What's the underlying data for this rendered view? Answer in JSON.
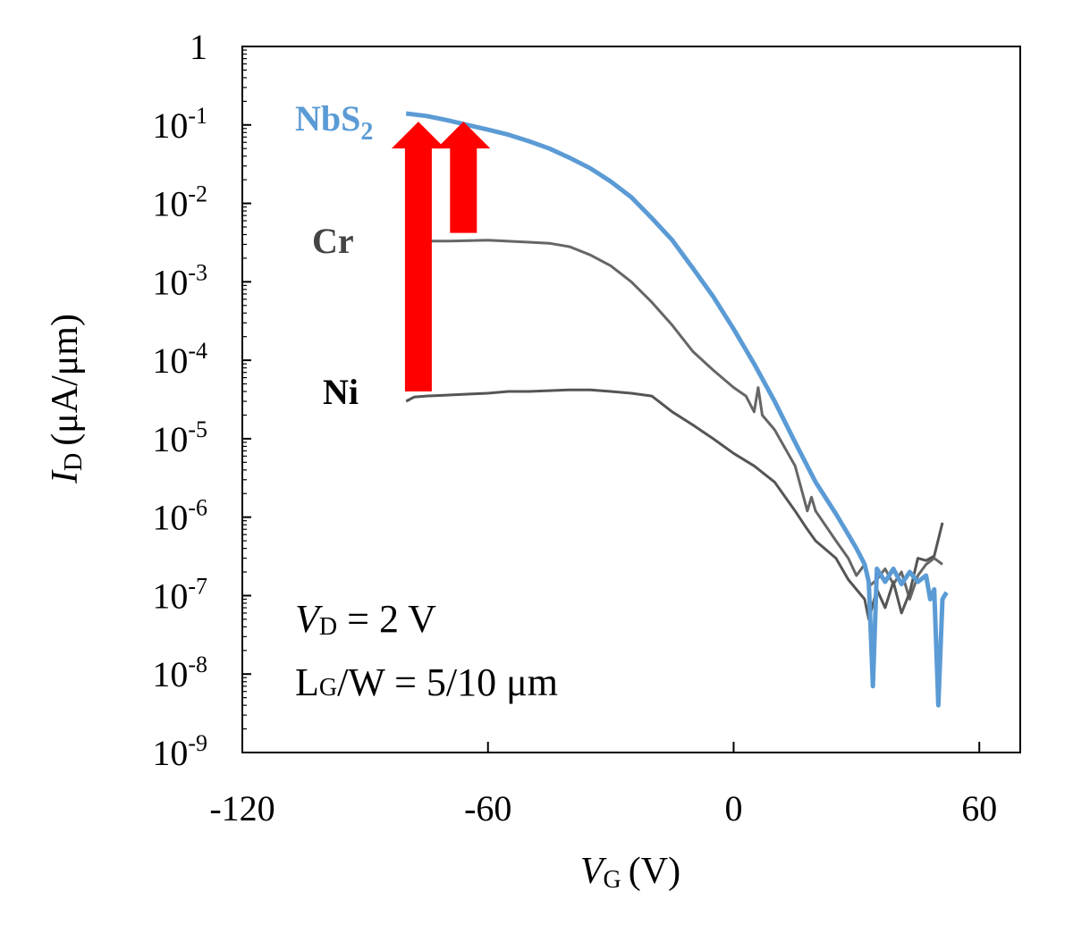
{
  "chart_data": {
    "type": "line",
    "xlabel": {
      "symbol": "V",
      "sub": "G",
      "unit": "(V)"
    },
    "ylabel": {
      "symbol": "I",
      "sub": "D",
      "unit": "(μA/μm)"
    },
    "xlim": [
      -120,
      70
    ],
    "ylim_log10": [
      -9,
      0
    ],
    "y_scale": "log",
    "x_ticks": [
      -120,
      -60,
      0,
      60
    ],
    "x_tick_labels": [
      "-120",
      "-60",
      "0",
      "60"
    ],
    "y_tick_labels": [
      {
        "base": "1",
        "exp": ""
      },
      {
        "base": "10",
        "exp": "-1"
      },
      {
        "base": "10",
        "exp": "-2"
      },
      {
        "base": "10",
        "exp": "-3"
      },
      {
        "base": "10",
        "exp": "-4"
      },
      {
        "base": "10",
        "exp": "-5"
      },
      {
        "base": "10",
        "exp": "-6"
      },
      {
        "base": "10",
        "exp": "-7"
      },
      {
        "base": "10",
        "exp": "-8"
      },
      {
        "base": "10",
        "exp": "-9"
      }
    ],
    "grid": false,
    "series": [
      {
        "name": "NbS2",
        "label_main": "NbS",
        "label_sub": "2",
        "color": "#5b9bd5",
        "points": [
          [
            -80,
            0.14
          ],
          [
            -75,
            0.13
          ],
          [
            -70,
            0.115
          ],
          [
            -65,
            0.1
          ],
          [
            -60,
            0.087
          ],
          [
            -55,
            0.075
          ],
          [
            -50,
            0.062
          ],
          [
            -45,
            0.05
          ],
          [
            -40,
            0.038
          ],
          [
            -35,
            0.028
          ],
          [
            -30,
            0.019
          ],
          [
            -25,
            0.012
          ],
          [
            -20,
            0.0065
          ],
          [
            -15,
            0.0034
          ],
          [
            -10,
            0.0015
          ],
          [
            -5,
            0.00065
          ],
          [
            0,
            0.00025
          ],
          [
            5,
            9e-05
          ],
          [
            10,
            3e-05
          ],
          [
            15,
            9e-06
          ],
          [
            20,
            2.8e-06
          ],
          [
            25,
            1.1e-06
          ],
          [
            28,
            6e-07
          ],
          [
            30,
            4e-07
          ],
          [
            32,
            2.5e-07
          ],
          [
            33,
            1.5e-07
          ],
          [
            34,
            7e-09
          ],
          [
            35,
            2.2e-07
          ],
          [
            37,
            1.5e-07
          ],
          [
            39,
            2.2e-07
          ],
          [
            41,
            1.4e-07
          ],
          [
            43,
            2e-07
          ],
          [
            45,
            1.5e-07
          ],
          [
            47,
            1.8e-07
          ],
          [
            48,
            9e-08
          ],
          [
            49,
            1.2e-07
          ],
          [
            50,
            4e-09
          ],
          [
            51,
            9e-08
          ],
          [
            52,
            1.1e-07
          ]
        ]
      },
      {
        "name": "Cr",
        "color": "#666666",
        "points": [
          [
            -80,
            0.0033
          ],
          [
            -70,
            0.0033
          ],
          [
            -60,
            0.0034
          ],
          [
            -50,
            0.0032
          ],
          [
            -45,
            0.0031
          ],
          [
            -40,
            0.0028
          ],
          [
            -35,
            0.0022
          ],
          [
            -30,
            0.0016
          ],
          [
            -25,
            0.001
          ],
          [
            -20,
            0.00055
          ],
          [
            -15,
            0.00028
          ],
          [
            -10,
            0.00013
          ],
          [
            -5,
            7.5e-05
          ],
          [
            0,
            4.5e-05
          ],
          [
            3,
            3.5e-05
          ],
          [
            5,
            2.2e-05
          ],
          [
            6,
            4.5e-05
          ],
          [
            7,
            2e-05
          ],
          [
            10,
            1.3e-05
          ],
          [
            15,
            4.5e-06
          ],
          [
            18,
            1.2e-06
          ],
          [
            19,
            1.8e-06
          ],
          [
            20,
            1.2e-06
          ],
          [
            25,
            5e-07
          ],
          [
            28,
            3e-07
          ],
          [
            30,
            1.8e-07
          ],
          [
            32,
            2.5e-07
          ],
          [
            33,
            1.3e-07
          ],
          [
            35,
            1.6e-07
          ],
          [
            37,
            2.2e-07
          ],
          [
            39,
            1.4e-07
          ],
          [
            41,
            2e-07
          ],
          [
            43,
            9e-08
          ],
          [
            45,
            1.8e-07
          ],
          [
            47,
            2.5e-07
          ],
          [
            49,
            3e-07
          ],
          [
            51,
            2.5e-07
          ]
        ]
      },
      {
        "name": "Ni",
        "color": "#555555",
        "points": [
          [
            -80,
            3e-05
          ],
          [
            -78,
            3.4e-05
          ],
          [
            -75,
            3.5e-05
          ],
          [
            -70,
            3.6e-05
          ],
          [
            -65,
            3.7e-05
          ],
          [
            -60,
            3.8e-05
          ],
          [
            -55,
            4e-05
          ],
          [
            -50,
            4e-05
          ],
          [
            -45,
            4.1e-05
          ],
          [
            -40,
            4.2e-05
          ],
          [
            -35,
            4.2e-05
          ],
          [
            -30,
            4e-05
          ],
          [
            -25,
            3.8e-05
          ],
          [
            -20,
            3.5e-05
          ],
          [
            -15,
            2.2e-05
          ],
          [
            -10,
            1.5e-05
          ],
          [
            -5,
            1e-05
          ],
          [
            0,
            6.5e-06
          ],
          [
            5,
            4.5e-06
          ],
          [
            10,
            2.8e-06
          ],
          [
            15,
            1.2e-06
          ],
          [
            18,
            7e-07
          ],
          [
            20,
            5e-07
          ],
          [
            25,
            3e-07
          ],
          [
            28,
            1.6e-07
          ],
          [
            30,
            1.2e-07
          ],
          [
            32,
            9e-08
          ],
          [
            33,
            5e-08
          ],
          [
            35,
            1.2e-07
          ],
          [
            37,
            7e-08
          ],
          [
            39,
            1.5e-07
          ],
          [
            41,
            6e-08
          ],
          [
            43,
            1.1e-07
          ],
          [
            45,
            3e-07
          ],
          [
            47,
            2.8e-07
          ],
          [
            49,
            3.2e-07
          ],
          [
            51,
            8.5e-07
          ]
        ]
      }
    ],
    "arrows": [
      {
        "x": -77,
        "from": 4e-05,
        "to": 0.11,
        "color": "#ff0000"
      },
      {
        "x": -66,
        "from": 0.0042,
        "to": 0.11,
        "color": "#ff0000"
      }
    ],
    "annotations": {
      "vd": {
        "symbol": "V",
        "sub": "D",
        "rest": " = 2 V"
      },
      "lgw": {
        "main": "L",
        "sub": "G",
        "rest": "/W = 5/10 μm"
      }
    }
  }
}
